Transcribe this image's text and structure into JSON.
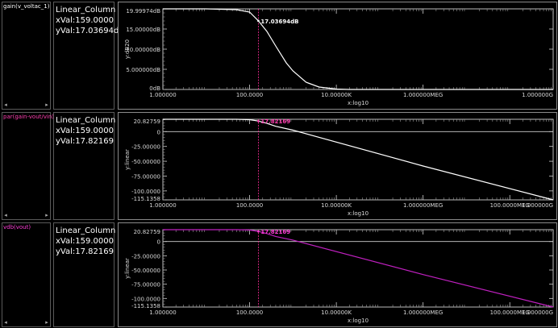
{
  "panels": [
    {
      "trace_name": "gain(v_voltac_1)",
      "trace_color": "#ffffff",
      "info": {
        "line1": "Linear_Column",
        "line2": "xVal:159.0000",
        "line3": "yVal:17.03694dB"
      },
      "chart_data": {
        "type": "line",
        "x_scale": "log10",
        "xlabel": "x:log10",
        "ylabel": "y:dB20",
        "y_ticks": [
          "19.99974dB",
          "15.00000dB",
          "10.00000dB",
          "5.000000dB",
          "0dB"
        ],
        "y_tick_values": [
          19.99974,
          15,
          10,
          5,
          0
        ],
        "x_ticks": [
          "1.000000",
          "100.0000",
          "10.00000K",
          "1.000000MEG",
          "1.000000G"
        ],
        "x_tick_values": [
          1,
          100,
          10000,
          1000000,
          1000000000
        ],
        "ylim": [
          0,
          19.99974
        ],
        "xlim": [
          1,
          1000000000
        ],
        "series": [
          {
            "color": "#ffffff",
            "x": [
              1,
              10,
              50,
              100,
              159,
              250,
              400,
              700,
              1000,
              2000,
              4000,
              10000,
              20000,
              1000000000
            ],
            "y": [
              19.99974,
              19.99,
              19.8,
              19.2,
              17.03694,
              14.4,
              10.8,
              6.6,
              4.6,
              1.8,
              0.6,
              0.1,
              0.0,
              0.0
            ]
          }
        ],
        "marker": {
          "x": 159,
          "y": 17.03694,
          "label": "17.03694dB",
          "label_color": "#ffffff",
          "line_color": "#ff2f9b"
        }
      }
    },
    {
      "trace_name": "par(gain-vout/vin)",
      "trace_color": "#ff3fb0",
      "info": {
        "line1": "Linear_Column",
        "line2": "xVal:159.0000",
        "line3": "yVal:17.82169"
      },
      "chart_data": {
        "type": "line",
        "x_scale": "log10",
        "xlabel": "x:log10",
        "ylabel": "y:linear",
        "y_ticks": [
          "20.82759",
          "0",
          "-25.00000",
          "-50.00000",
          "-75.00000",
          "-100.0000",
          "-115.1358"
        ],
        "y_tick_values": [
          20.82759,
          0,
          -25,
          -50,
          -75,
          -100,
          -115.1358
        ],
        "x_ticks": [
          "1.000000",
          "100.0000",
          "10.00000K",
          "1.000000MEG",
          "100.0000MEG",
          "1.000000G"
        ],
        "x_tick_values": [
          1,
          100,
          10000,
          1000000,
          100000000,
          1000000000
        ],
        "ylim": [
          -115.1358,
          20.82759
        ],
        "xlim": [
          1,
          1000000000
        ],
        "series": [
          {
            "color": "#ffffff",
            "x": [
              1,
              50,
              100,
              159,
              250,
              400,
              1000,
              1000000,
              1000000000
            ],
            "y": [
              20.82759,
              20.8,
              20.2,
              17.82169,
              14.0,
              9.0,
              2.5,
              -58.0,
              -115.1358
            ]
          }
        ],
        "marker": {
          "x": 159,
          "y": 17.82169,
          "label": "17.82169",
          "label_color": "#ff3fb0",
          "line_color": "#ff2f9b"
        }
      }
    },
    {
      "trace_name": "vdb(vout)",
      "trace_color": "#ff3fd8",
      "info": {
        "line1": "Linear_Column",
        "line2": "xVal:159.0000",
        "line3": "yVal:17.82169"
      },
      "chart_data": {
        "type": "line",
        "x_scale": "log10",
        "xlabel": "x:log10",
        "ylabel": "y:linear",
        "y_ticks": [
          "20.82759",
          "0",
          "-25.00000",
          "-50.00000",
          "-75.00000",
          "-100.0000",
          "-115.1358"
        ],
        "y_tick_values": [
          20.82759,
          0,
          -25,
          -50,
          -75,
          -100,
          -115.1358
        ],
        "x_ticks": [
          "1.000000",
          "100.0000",
          "10.00000K",
          "1.000000MEG",
          "100.0000MEG",
          "1.000000G"
        ],
        "x_tick_values": [
          1,
          100,
          10000,
          1000000,
          100000000,
          1000000000
        ],
        "ylim": [
          -115.1358,
          20.82759
        ],
        "xlim": [
          1,
          1000000000
        ],
        "series": [
          {
            "color": "#c020c0",
            "x": [
              1,
              50,
              100,
              159,
              250,
              400,
              1000,
              1000000,
              1000000000
            ],
            "y": [
              20.82759,
              20.8,
              20.2,
              17.82169,
              14.0,
              9.0,
              2.5,
              -58.0,
              -115.1358
            ]
          }
        ],
        "marker": {
          "x": 159,
          "y": 17.82169,
          "label": "17.82169",
          "label_color": "#ff3fd8",
          "line_color": "#ff2f9b"
        }
      }
    }
  ]
}
